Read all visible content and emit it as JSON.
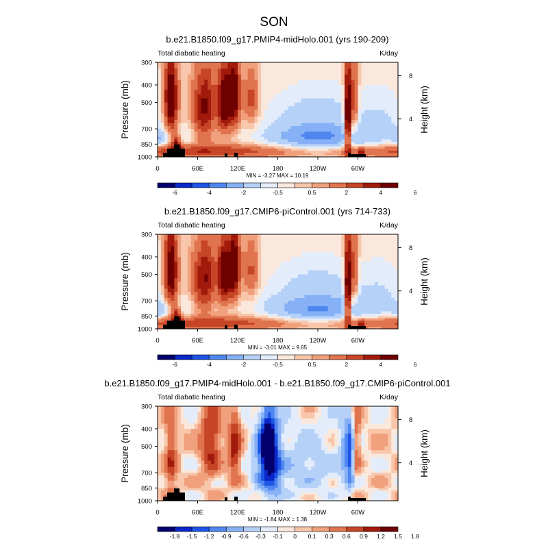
{
  "figure": {
    "title": "SON"
  },
  "colors": {
    "div14": [
      "#03006e",
      "#0a28c8",
      "#1e55e6",
      "#4f86f0",
      "#86b1f6",
      "#b6d1f8",
      "#e2ecfb",
      "#fbe8dc",
      "#f8c6aa",
      "#f0a07c",
      "#e0744e",
      "#c64527",
      "#a11a0c",
      "#6e0000"
    ]
  },
  "chart_data": [
    {
      "type": "heatmap",
      "title": "b.e21.B1850.f09_g17.PMIP4-midHolo.001 (yrs 190-209)",
      "left_label": "Total diabatic heating",
      "right_label": "K/day",
      "ylabel": "Pressure (mb)",
      "ylabel_right": "Height (km)",
      "x_ticks": [
        "0",
        "60E",
        "120E",
        "180",
        "120W",
        "60W"
      ],
      "y_ticks": [
        "300",
        "400",
        "500",
        "700",
        "850",
        "1000"
      ],
      "y_ticks_right": [
        "8",
        "4"
      ],
      "min_max": "MIN =  -3.27  MAX =  10.19",
      "colorbar_labels": [
        "-6",
        "-4",
        "-2",
        "-0.5",
        "0.5",
        "2",
        "4",
        "6"
      ],
      "colorbar_label_positions": [
        1,
        3,
        5,
        7,
        9,
        11,
        13,
        15
      ],
      "levels": [
        -6,
        -5,
        -4,
        -3,
        -2,
        -1,
        -0.5,
        0,
        0.5,
        1,
        2,
        3,
        4,
        5,
        6
      ],
      "scale": 1
    },
    {
      "type": "heatmap",
      "title": "b.e21.B1850.f09_g17.CMIP6-piControl.001 (yrs 714-733)",
      "left_label": "Total diabatic heating",
      "right_label": "K/day",
      "ylabel": "Pressure (mb)",
      "ylabel_right": "Height (km)",
      "x_ticks": [
        "0",
        "60E",
        "120E",
        "180",
        "120W",
        "60W"
      ],
      "y_ticks": [
        "300",
        "400",
        "500",
        "700",
        "850",
        "1000"
      ],
      "y_ticks_right": [
        "8",
        "4"
      ],
      "min_max": "MIN =  -3.01  MAX =  9.65",
      "colorbar_labels": [
        "-6",
        "-4",
        "-2",
        "-0.5",
        "0.5",
        "2",
        "4",
        "6"
      ],
      "colorbar_label_positions": [
        1,
        3,
        5,
        7,
        9,
        11,
        13,
        15
      ],
      "levels": [
        -6,
        -5,
        -4,
        -3,
        -2,
        -1,
        -0.5,
        0,
        0.5,
        1,
        2,
        3,
        4,
        5,
        6
      ],
      "scale": 1
    },
    {
      "type": "heatmap",
      "title": "b.e21.B1850.f09_g17.PMIP4-midHolo.001 - b.e21.B1850.f09_g17.CMIP6-piControl.001",
      "left_label": "Total diabatic heating",
      "right_label": "K/day",
      "ylabel": "Pressure (mb)",
      "ylabel_right": "Height (km)",
      "x_ticks": [
        "0",
        "60E",
        "120E",
        "180",
        "120W",
        "60W"
      ],
      "y_ticks": [
        "300",
        "400",
        "500",
        "700",
        "850",
        "1000"
      ],
      "y_ticks_right": [
        "8",
        "4"
      ],
      "min_max": "MIN =  -1.84  MAX =  1.38",
      "colorbar_labels": [
        "-1.8",
        "-1.5",
        "-1.2",
        "-0.9",
        "-0.6",
        "-0.3",
        "-0.1",
        "0",
        "0.1",
        "0.3",
        "0.6",
        "0.9",
        "1.2",
        "1.5",
        "1.8"
      ],
      "colorbar_label_positions": [
        1,
        2,
        3,
        4,
        5,
        6,
        7,
        8,
        9,
        10,
        11,
        12,
        13,
        14,
        15
      ],
      "levels": [
        -1.8,
        -1.5,
        -1.2,
        -0.9,
        -0.6,
        -0.3,
        -0.1,
        0,
        0.1,
        0.3,
        0.6,
        0.9,
        1.2,
        1.5,
        1.8
      ],
      "scale": 0.3
    }
  ]
}
